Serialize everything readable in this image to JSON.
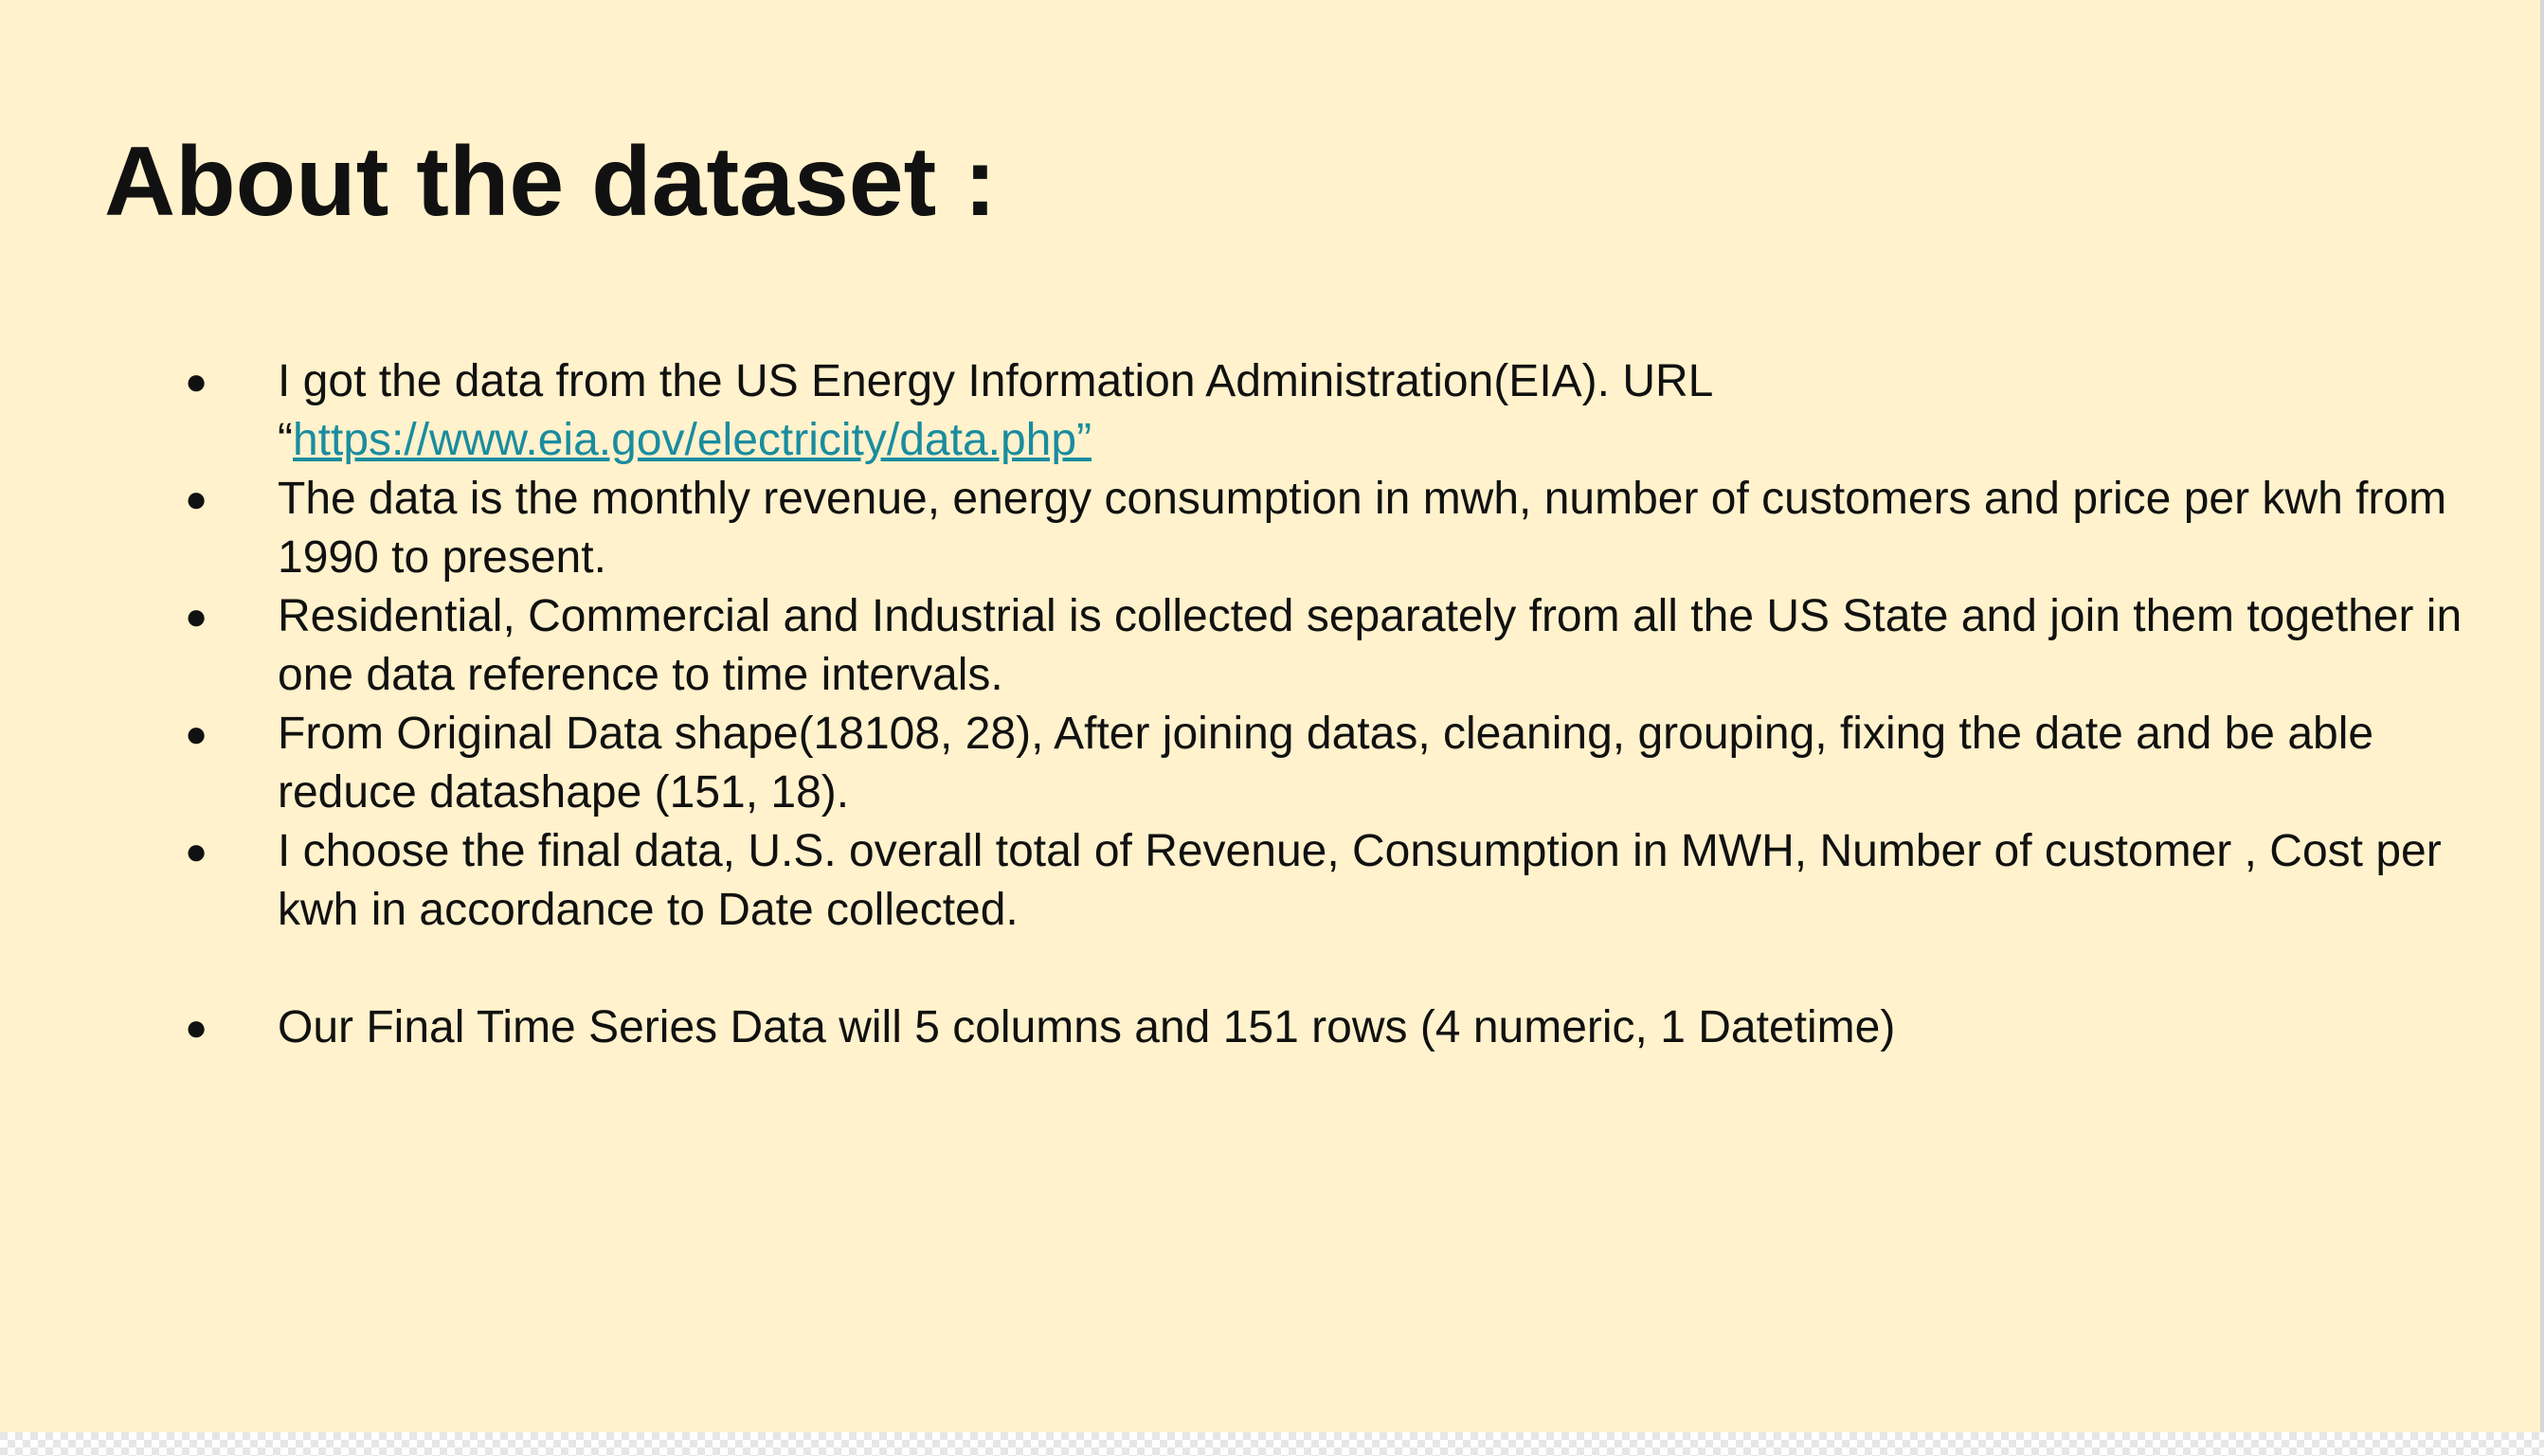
{
  "slide": {
    "title": "About the dataset :",
    "bullet_glyph": "●",
    "bullets": [
      {
        "text": "I got the data from the US Energy Information Administration(EIA). URL",
        "quote_open": "“",
        "link": "https://www.eia.gov/electricity/data.php”"
      },
      {
        "text": "The data is the monthly revenue, energy consumption in mwh, number of customers and price per kwh from 1990 to present."
      },
      {
        "text": "Residential, Commercial and Industrial is collected separately from all the US State and join them together in one data reference to time intervals."
      },
      {
        "text": "From Original Data shape(18108, 28), After joining datas, cleaning, grouping, fixing the date and be able reduce datashape (151, 18)."
      },
      {
        "text": "I choose the final data, U.S. overall total of Revenue, Consumption in MWH, Number of customer , Cost per kwh in accordance to Date collected."
      },
      {
        "text": "Our Final Time Series Data will  5 columns and 151 rows (4 numeric, 1 Datetime)"
      }
    ]
  },
  "colors": {
    "slide_background": "#fff2cc",
    "text": "#111111",
    "link": "#1a8c9f"
  }
}
